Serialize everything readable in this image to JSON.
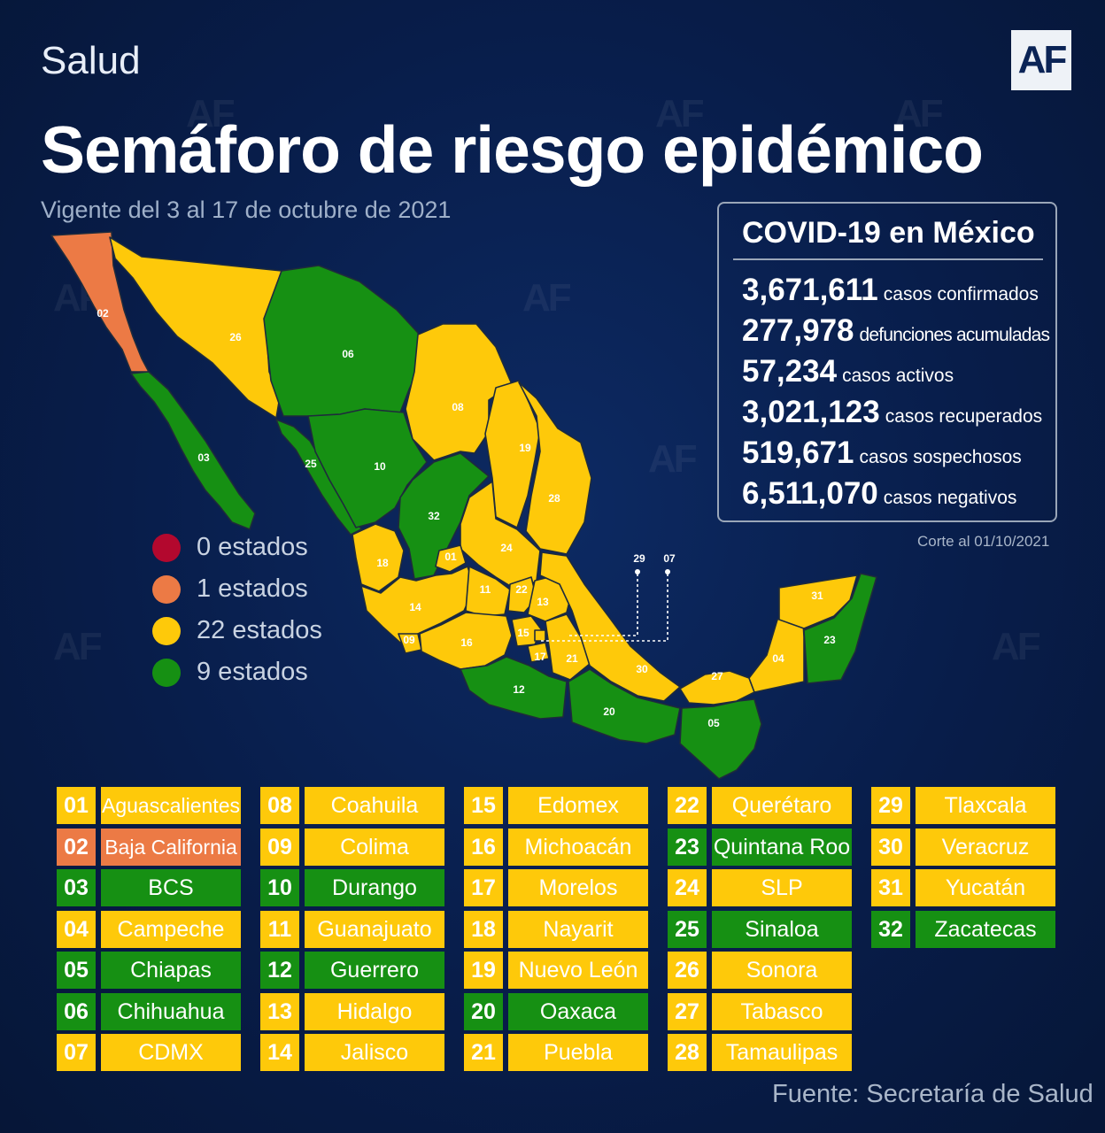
{
  "header": {
    "section": "Salud",
    "logo": "AF",
    "title": "Semáforo de riesgo epidémico",
    "subtitle": "Vigente del 3 al 17 de octubre de 2021"
  },
  "stats": {
    "title": "COVID-19 en México",
    "rows": [
      {
        "value": "3,671,611",
        "label": "casos confirmados"
      },
      {
        "value": "277,978",
        "label": "defunciones acumuladas"
      },
      {
        "value": "57,234",
        "label": "casos activos"
      },
      {
        "value": "3,021,123",
        "label": "casos recuperados"
      },
      {
        "value": "519,671",
        "label": "casos sospechosos"
      },
      {
        "value": "6,511,070",
        "label": "casos negativos"
      }
    ],
    "cutoff": "Corte al 01/10/2021"
  },
  "colors": {
    "red": "#b3082e",
    "orange": "#ec7a45",
    "yellow": "#fec90a",
    "green": "#169013"
  },
  "legend": [
    {
      "level": "red",
      "label": "0 estados"
    },
    {
      "level": "orange",
      "label": "1 estados"
    },
    {
      "level": "yellow",
      "label": "22 estados"
    },
    {
      "level": "green",
      "label": "9 estados"
    }
  ],
  "states": [
    {
      "code": "01",
      "name": "Aguascalientes",
      "level": "yellow"
    },
    {
      "code": "02",
      "name": "Baja California",
      "level": "orange"
    },
    {
      "code": "03",
      "name": "BCS",
      "level": "green"
    },
    {
      "code": "04",
      "name": "Campeche",
      "level": "yellow"
    },
    {
      "code": "05",
      "name": "Chiapas",
      "level": "green"
    },
    {
      "code": "06",
      "name": "Chihuahua",
      "level": "green"
    },
    {
      "code": "07",
      "name": "CDMX",
      "level": "yellow"
    },
    {
      "code": "08",
      "name": "Coahuila",
      "level": "yellow"
    },
    {
      "code": "09",
      "name": "Colima",
      "level": "yellow"
    },
    {
      "code": "10",
      "name": "Durango",
      "level": "green"
    },
    {
      "code": "11",
      "name": "Guanajuato",
      "level": "yellow"
    },
    {
      "code": "12",
      "name": "Guerrero",
      "level": "green"
    },
    {
      "code": "13",
      "name": "Hidalgo",
      "level": "yellow"
    },
    {
      "code": "14",
      "name": "Jalisco",
      "level": "yellow"
    },
    {
      "code": "15",
      "name": "Edomex",
      "level": "yellow"
    },
    {
      "code": "16",
      "name": "Michoacán",
      "level": "yellow"
    },
    {
      "code": "17",
      "name": "Morelos",
      "level": "yellow"
    },
    {
      "code": "18",
      "name": "Nayarit",
      "level": "yellow"
    },
    {
      "code": "19",
      "name": "Nuevo León",
      "level": "yellow"
    },
    {
      "code": "20",
      "name": "Oaxaca",
      "level": "green"
    },
    {
      "code": "21",
      "name": "Puebla",
      "level": "yellow"
    },
    {
      "code": "22",
      "name": "Querétaro",
      "level": "yellow"
    },
    {
      "code": "23",
      "name": "Quintana Roo",
      "level": "green"
    },
    {
      "code": "24",
      "name": "SLP",
      "level": "yellow"
    },
    {
      "code": "25",
      "name": "Sinaloa",
      "level": "green"
    },
    {
      "code": "26",
      "name": "Sonora",
      "level": "yellow"
    },
    {
      "code": "27",
      "name": "Tabasco",
      "level": "yellow"
    },
    {
      "code": "28",
      "name": "Tamaulipas",
      "level": "yellow"
    },
    {
      "code": "29",
      "name": "Tlaxcala",
      "level": "yellow"
    },
    {
      "code": "30",
      "name": "Veracruz",
      "level": "yellow"
    },
    {
      "code": "31",
      "name": "Yucatán",
      "level": "yellow"
    },
    {
      "code": "32",
      "name": "Zacatecas",
      "level": "green"
    }
  ],
  "source": "Fuente: Secretaría de Salud"
}
